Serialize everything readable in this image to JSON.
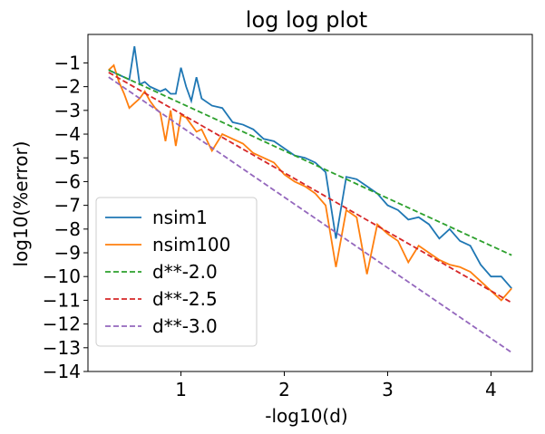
{
  "chart_data": {
    "type": "line",
    "title": "log log plot",
    "xlabel": "-log10(d)",
    "ylabel": "log10(%error)",
    "xlim": [
      0.1,
      4.4
    ],
    "ylim": [
      -14,
      0.2
    ],
    "xticks": [
      1,
      2,
      3,
      4
    ],
    "xtick_labels": [
      "1",
      "2",
      "3",
      "4"
    ],
    "yticks": [
      -1,
      -2,
      -3,
      -4,
      -5,
      -6,
      -7,
      -8,
      -9,
      -10,
      -11,
      -12,
      -13,
      -14
    ],
    "ytick_labels": [
      "−1",
      "−2",
      "−3",
      "−4",
      "−5",
      "−6",
      "−7",
      "−8",
      "−9",
      "−10",
      "−11",
      "−12",
      "−13",
      "−14"
    ],
    "grid": false,
    "legend_position": "lower-left",
    "series": [
      {
        "name": "nsim1",
        "color": "#1f77b4",
        "dash": "solid",
        "x": [
          0.3,
          0.35,
          0.4,
          0.45,
          0.5,
          0.55,
          0.6,
          0.65,
          0.7,
          0.75,
          0.8,
          0.85,
          0.9,
          0.95,
          1.0,
          1.05,
          1.1,
          1.15,
          1.2,
          1.3,
          1.4,
          1.5,
          1.6,
          1.7,
          1.8,
          1.9,
          2.0,
          2.1,
          2.2,
          2.3,
          2.4,
          2.5,
          2.6,
          2.7,
          2.8,
          2.9,
          3.0,
          3.1,
          3.2,
          3.3,
          3.4,
          3.5,
          3.6,
          3.7,
          3.8,
          3.9,
          4.0,
          4.1,
          4.2
        ],
        "y": [
          -1.3,
          -1.4,
          -1.5,
          -1.6,
          -1.7,
          -0.3,
          -1.9,
          -1.8,
          -2.0,
          -2.1,
          -2.2,
          -2.1,
          -2.3,
          -2.3,
          -1.2,
          -2.0,
          -2.6,
          -1.6,
          -2.5,
          -2.8,
          -2.9,
          -3.5,
          -3.6,
          -3.8,
          -4.2,
          -4.3,
          -4.6,
          -4.9,
          -5.0,
          -5.2,
          -5.6,
          -8.4,
          -5.8,
          -5.9,
          -6.2,
          -6.5,
          -7.0,
          -7.2,
          -7.6,
          -7.5,
          -7.8,
          -8.4,
          -8.0,
          -8.5,
          -8.7,
          -9.5,
          -10.0,
          -10.0,
          -10.5
        ]
      },
      {
        "name": "nsim100",
        "color": "#ff7f0e",
        "dash": "solid",
        "x": [
          0.3,
          0.35,
          0.4,
          0.45,
          0.5,
          0.55,
          0.6,
          0.65,
          0.7,
          0.75,
          0.8,
          0.85,
          0.9,
          0.95,
          1.0,
          1.05,
          1.1,
          1.15,
          1.2,
          1.3,
          1.4,
          1.5,
          1.6,
          1.7,
          1.8,
          1.9,
          2.0,
          2.1,
          2.2,
          2.3,
          2.4,
          2.5,
          2.6,
          2.7,
          2.8,
          2.9,
          3.0,
          3.1,
          3.2,
          3.3,
          3.4,
          3.5,
          3.6,
          3.7,
          3.8,
          3.9,
          4.0,
          4.1,
          4.2
        ],
        "y": [
          -1.3,
          -1.1,
          -1.8,
          -2.3,
          -2.9,
          -2.7,
          -2.5,
          -2.2,
          -2.6,
          -2.9,
          -3.1,
          -4.3,
          -3.0,
          -4.5,
          -3.2,
          -3.3,
          -3.6,
          -3.9,
          -3.8,
          -4.7,
          -4.0,
          -4.2,
          -4.4,
          -4.8,
          -5.0,
          -5.2,
          -5.7,
          -6.0,
          -6.2,
          -6.5,
          -7.0,
          -9.6,
          -7.2,
          -7.5,
          -9.9,
          -7.8,
          -8.2,
          -8.5,
          -9.4,
          -8.7,
          -9.0,
          -9.3,
          -9.5,
          -9.6,
          -9.8,
          -10.2,
          -10.6,
          -11.0,
          -10.5
        ]
      },
      {
        "name": "d**-2.0",
        "color": "#2ca02c",
        "dash": "dashed",
        "x": [
          0.3,
          4.2
        ],
        "y": [
          -1.3,
          -9.1
        ]
      },
      {
        "name": "d**-2.5",
        "color": "#d62728",
        "dash": "dashed",
        "x": [
          0.3,
          4.2
        ],
        "y": [
          -1.4,
          -11.1
        ]
      },
      {
        "name": "d**-3.0",
        "color": "#9467bd",
        "dash": "dashed",
        "x": [
          0.3,
          4.2
        ],
        "y": [
          -1.6,
          -13.2
        ]
      }
    ]
  }
}
